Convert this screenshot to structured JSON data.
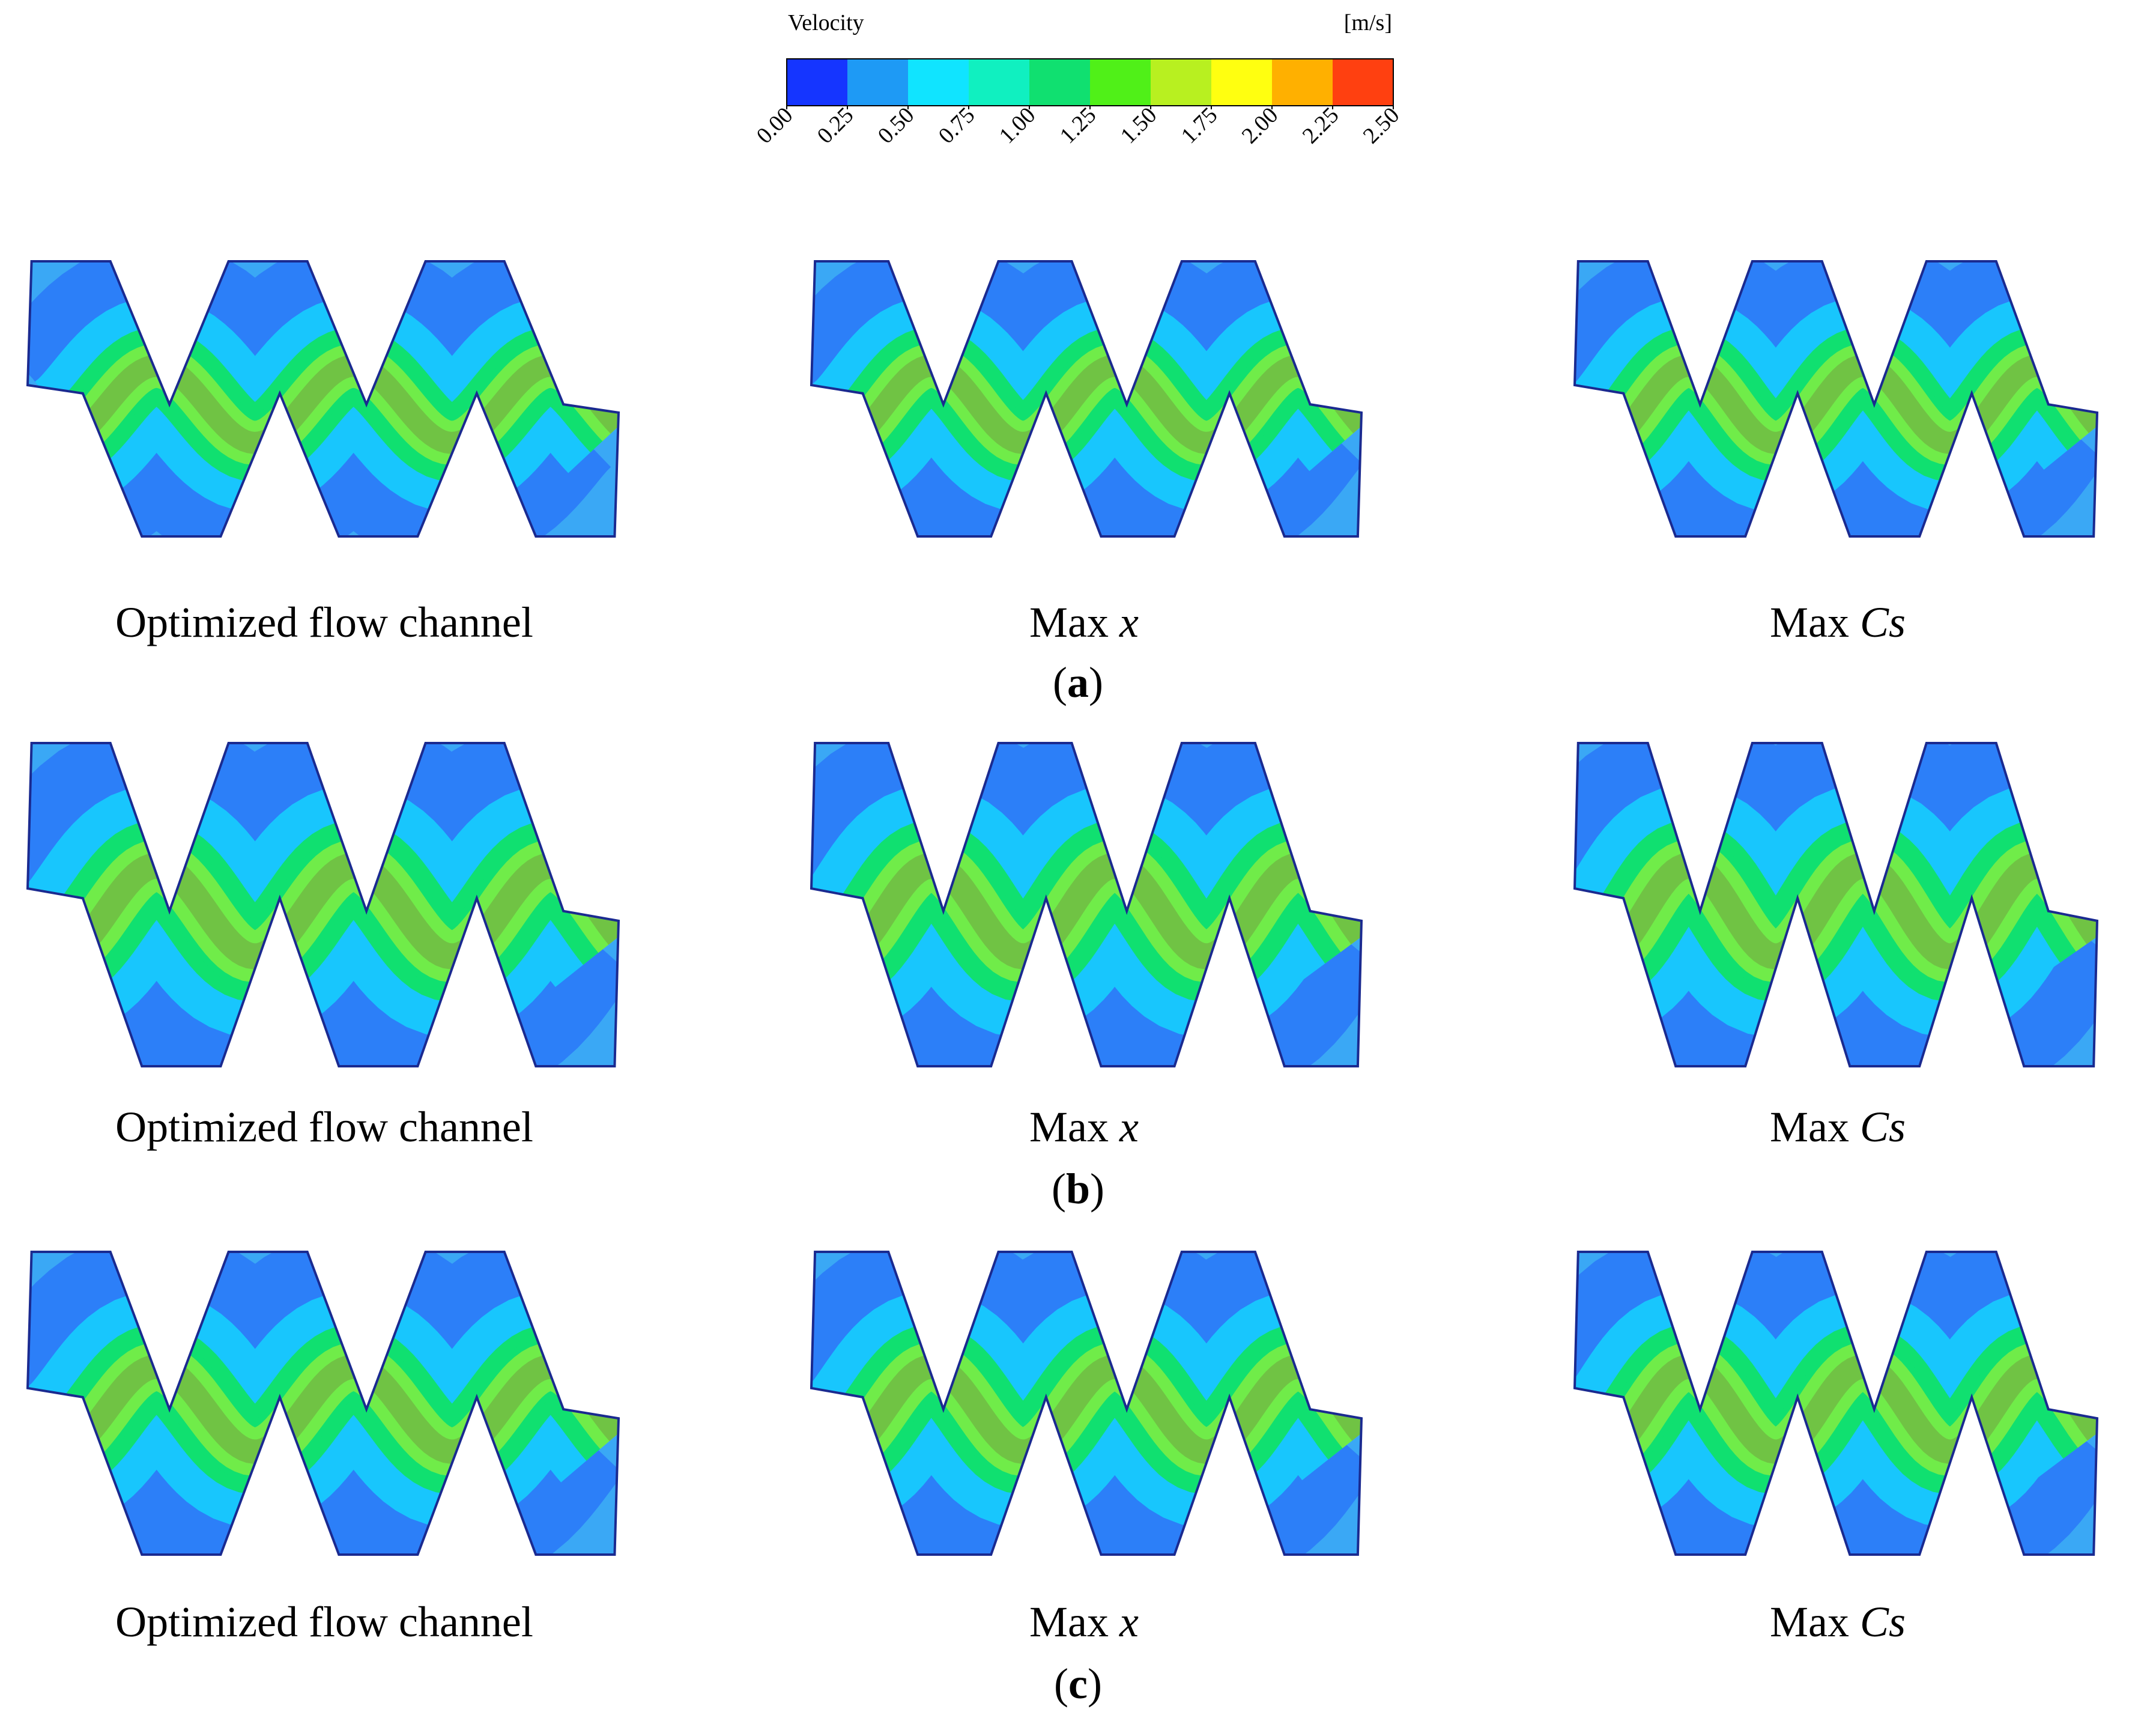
{
  "colorbar": {
    "title": "Velocity",
    "unit": "[m/s]",
    "lim": [
      0,
      2.5
    ],
    "ticks": [
      {
        "value": 0,
        "label": "0.00"
      },
      {
        "value": 0.25,
        "label": "0.25"
      },
      {
        "value": 0.5,
        "label": "0.50"
      },
      {
        "value": 0.75,
        "label": "0.75"
      },
      {
        "value": 1,
        "label": "1.00"
      },
      {
        "value": 1.25,
        "label": "1.25"
      },
      {
        "value": 1.5,
        "label": "1.50"
      },
      {
        "value": 1.75,
        "label": "1.75"
      },
      {
        "value": 2,
        "label": "2.00"
      },
      {
        "value": 2.25,
        "label": "2.25"
      },
      {
        "value": 2.5,
        "label": "2.50"
      }
    ],
    "colors": [
      "#1535ff",
      "#1e9af5",
      "#10e4ff",
      "#10f0c0",
      "#10e070",
      "#50f018",
      "#b8f020",
      "#ffff10",
      "#ffb000",
      "#ff4010"
    ]
  },
  "rows": [
    {
      "caption_parts": [
        "(",
        "a",
        ")"
      ],
      "panels": [
        {
          "label_parts": [
            "Optimized flow channel"
          ]
        },
        {
          "label_parts": [
            "Max ",
            "x"
          ]
        },
        {
          "label_parts": [
            "Max ",
            "Cs"
          ]
        }
      ]
    },
    {
      "caption_parts": [
        "(",
        "b",
        ")"
      ],
      "panels": [
        {
          "label_parts": [
            "Optimized flow channel"
          ]
        },
        {
          "label_parts": [
            "Max ",
            "x"
          ]
        },
        {
          "label_parts": [
            "Max ",
            "Cs"
          ]
        }
      ]
    },
    {
      "caption_parts": [
        "(",
        "c",
        ")"
      ],
      "panels": [
        {
          "label_parts": [
            "Optimized flow channel"
          ]
        },
        {
          "label_parts": [
            "Max ",
            "x"
          ]
        },
        {
          "label_parts": [
            "Max ",
            "Cs"
          ]
        }
      ]
    }
  ]
}
